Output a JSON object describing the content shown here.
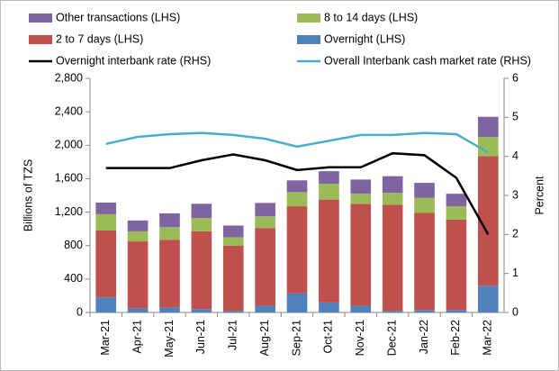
{
  "chart_data": {
    "type": "bar",
    "y_label": "Billions of TZS",
    "y2_label": "Percent",
    "categories": [
      "Mar-21",
      "Apr-21",
      "May-21",
      "Jun-21",
      "Jul-21",
      "Aug-21",
      "Sep-21",
      "Oct-21",
      "Nov-21",
      "Dec-21",
      "Jan-22",
      "Feb-22",
      "Mar-22"
    ],
    "stacked": true,
    "series": [
      {
        "name": "Other transactions (LHS)",
        "type": "bar",
        "color": "#8064a2",
        "values": [
          140,
          130,
          165,
          170,
          140,
          160,
          140,
          150,
          170,
          200,
          180,
          150,
          240
        ]
      },
      {
        "name": "8 to 14 days (LHS)",
        "type": "bar",
        "color": "#9bbb59",
        "values": [
          195,
          120,
          150,
          160,
          100,
          140,
          170,
          190,
          120,
          140,
          180,
          160,
          230
        ]
      },
      {
        "name": "2 to 7 days (LHS)",
        "type": "bar",
        "color": "#c0504d",
        "values": [
          800,
          800,
          810,
          930,
          780,
          930,
          1040,
          1230,
          1220,
          1270,
          1160,
          1080,
          1550
        ]
      },
      {
        "name": "Overnight (LHS)",
        "type": "bar",
        "color": "#4f81bd",
        "values": [
          180,
          50,
          60,
          40,
          20,
          80,
          230,
          120,
          80,
          20,
          30,
          30,
          320
        ]
      },
      {
        "name": "Overnight interbank rate (RHS)",
        "type": "line",
        "axis": "y2",
        "color": "#000000",
        "values": [
          3.7,
          3.7,
          3.7,
          3.9,
          4.05,
          3.9,
          3.65,
          3.72,
          3.72,
          4.08,
          4.03,
          3.45,
          2.0
        ]
      },
      {
        "name": "Overall Interbank cash market rate (RHS)",
        "type": "line",
        "axis": "y2",
        "color": "#4bacc6",
        "values": [
          4.32,
          4.5,
          4.57,
          4.6,
          4.55,
          4.45,
          4.25,
          4.4,
          4.55,
          4.55,
          4.6,
          4.57,
          4.1
        ]
      }
    ],
    "ylim": [
      0,
      2800
    ],
    "yticks": [
      0,
      400,
      800,
      {
        "value": 1200,
        "label": "1,200"
      },
      {
        "value": 1600,
        "label": "1,600"
      },
      {
        "value": 2000,
        "label": "2,000"
      },
      {
        "value": 2400,
        "label": "2,400"
      },
      {
        "value": 2800,
        "label": "2,800"
      }
    ],
    "y2lim": [
      0,
      6
    ],
    "y2ticks": [
      0,
      1,
      2,
      3,
      4,
      5,
      6
    ]
  }
}
